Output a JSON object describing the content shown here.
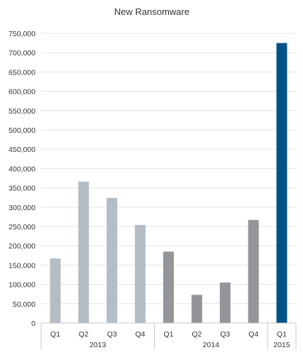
{
  "chart_data": {
    "type": "bar",
    "title": "New Ransomware",
    "xlabel": "",
    "ylabel": "",
    "ylim": [
      0,
      750000
    ],
    "yticks": [
      0,
      50000,
      100000,
      150000,
      200000,
      250000,
      300000,
      350000,
      400000,
      450000,
      500000,
      550000,
      600000,
      650000,
      700000,
      750000
    ],
    "ytick_labels": [
      "0",
      "50,000",
      "100,000",
      "150,000",
      "200,000",
      "250,000",
      "300,000",
      "350,000",
      "400,000",
      "450,000",
      "500,000",
      "550,000",
      "600,000",
      "650,000",
      "700,000",
      "750,000"
    ],
    "grid": true,
    "legend": "none",
    "groups": [
      {
        "label": "2013",
        "color": "#b4bcc4",
        "bars": [
          {
            "category": "Q1",
            "value": 167000
          },
          {
            "category": "Q2",
            "value": 366000
          },
          {
            "category": "Q3",
            "value": 324000
          },
          {
            "category": "Q4",
            "value": 254000
          }
        ]
      },
      {
        "label": "2014",
        "color": "#939598",
        "bars": [
          {
            "category": "Q1",
            "value": 185000
          },
          {
            "category": "Q2",
            "value": 73000
          },
          {
            "category": "Q3",
            "value": 105000
          },
          {
            "category": "Q4",
            "value": 267000
          }
        ]
      },
      {
        "label": "2015",
        "color": "#005288",
        "bars": [
          {
            "category": "Q1",
            "value": 725000
          }
        ]
      }
    ]
  }
}
